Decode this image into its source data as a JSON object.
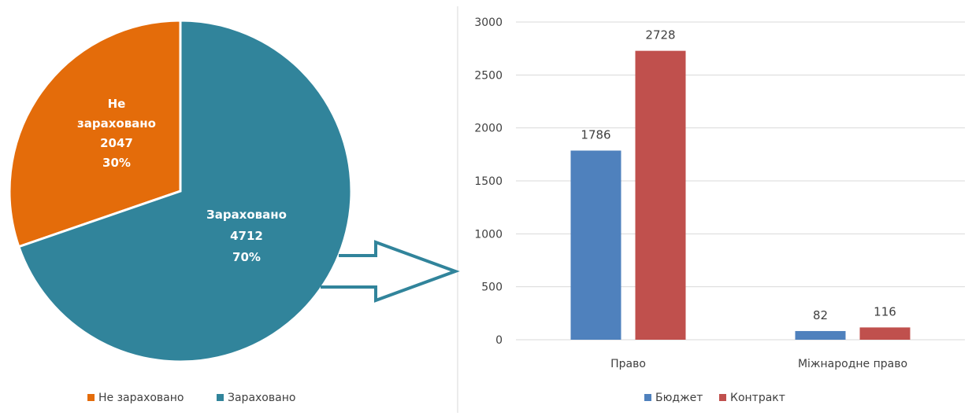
{
  "chart_data": [
    {
      "type": "pie",
      "title": "",
      "slices": [
        {
          "label_lines": [
            "Не",
            "зараховано"
          ],
          "legend": "Не зараховано",
          "value": 2047,
          "percent": "30%",
          "color": "#e46c0a"
        },
        {
          "label_lines": [
            "Зараховано"
          ],
          "legend": "Зараховано",
          "value": 4712,
          "percent": "70%",
          "color": "#31849b"
        }
      ],
      "legend_position": "bottom"
    },
    {
      "type": "bar",
      "title": "",
      "categories": [
        "Право",
        "Міжнародне право"
      ],
      "series": [
        {
          "name": "Бюджет",
          "values": [
            1786,
            82
          ],
          "color": "#4f81bd"
        },
        {
          "name": "Контракт",
          "values": [
            2728,
            116
          ],
          "color": "#c0504d"
        }
      ],
      "ylim": [
        0,
        3000
      ],
      "yticks": [
        0,
        500,
        1000,
        1500,
        2000,
        2500,
        3000
      ],
      "grid": true,
      "legend_position": "bottom"
    }
  ],
  "colors": {
    "arrow": "#31849b",
    "grid": "#d9d9d9",
    "divider": "#d9d9d9"
  }
}
